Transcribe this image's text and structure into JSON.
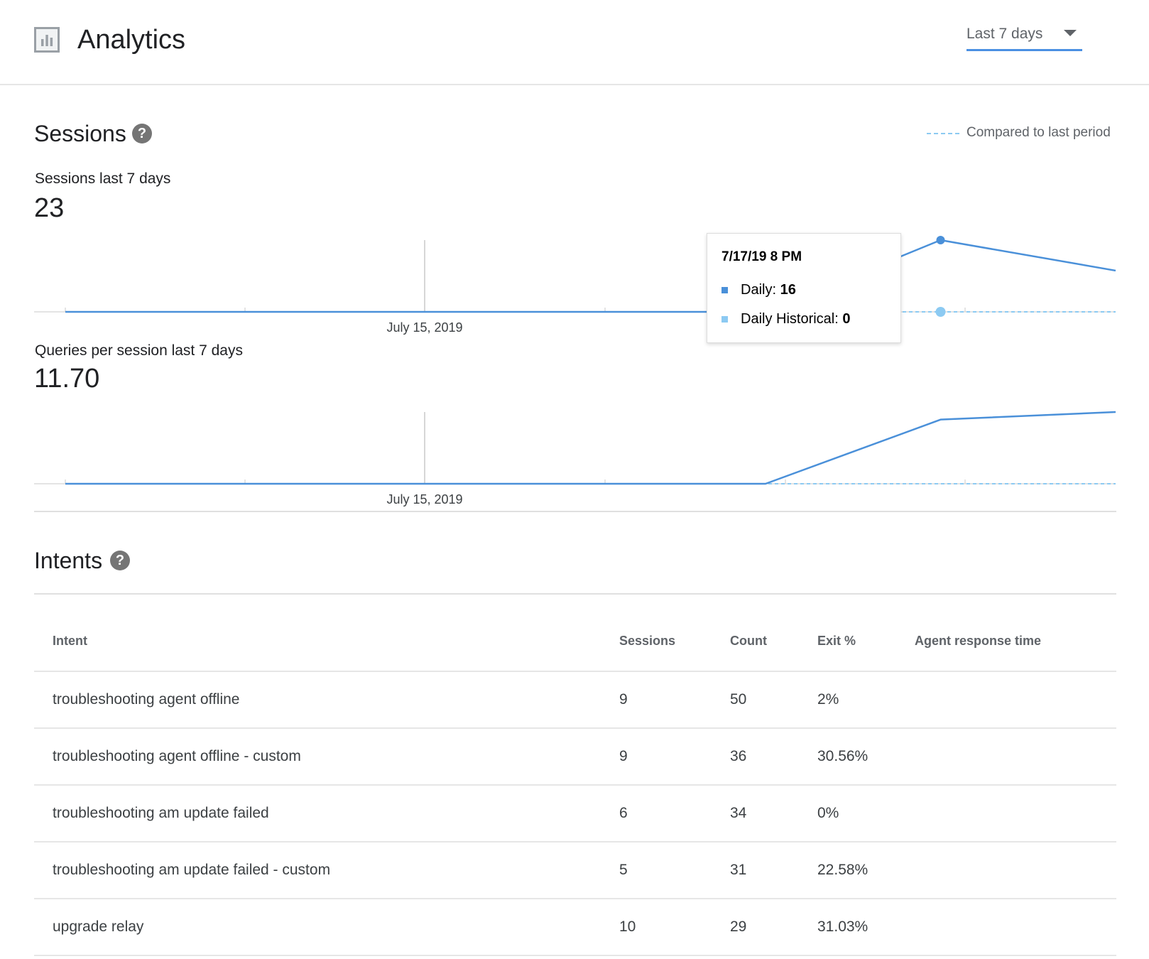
{
  "header": {
    "title": "Analytics",
    "icon": "bar-chart-icon",
    "range_select": {
      "selected": "Last 7 days"
    }
  },
  "sessions": {
    "title": "Sessions",
    "help_icon": "help-icon",
    "legend": {
      "label": "Compared to last period"
    },
    "sessions_metric": {
      "label": "Sessions last 7 days",
      "value": "23"
    },
    "queries_metric": {
      "label": "Queries per session last 7 days",
      "value": "11.70"
    },
    "tooltip": {
      "title": "7/17/19 8 PM",
      "rows": [
        {
          "label": "Daily:",
          "value": "16",
          "color": "#4a90d9"
        },
        {
          "label": "Daily Historical:",
          "value": "0",
          "color": "#8ccaf2"
        }
      ]
    }
  },
  "chart_data": [
    {
      "type": "line",
      "title": "Sessions last 7 days",
      "x_tick_labels": [
        "July 15, 2019"
      ],
      "series": [
        {
          "name": "Daily",
          "values": [
            0,
            0,
            0,
            0,
            0,
            16,
            9.2
          ],
          "color": "#4a90d9"
        },
        {
          "name": "Daily Historical",
          "values": [
            0,
            0,
            0,
            0,
            0,
            0,
            0
          ],
          "color": "#8ccaf2",
          "dashed": true
        }
      ],
      "ylim": [
        0,
        16
      ],
      "grid": false
    },
    {
      "type": "line",
      "title": "Queries per session last 7 days",
      "x_tick_labels": [
        "July 15, 2019"
      ],
      "series": [
        {
          "values": [
            0,
            0,
            0,
            0,
            0,
            11,
            12.3
          ],
          "color": "#4a90d9"
        },
        {
          "values": [
            0,
            0,
            0,
            0,
            0,
            0,
            0
          ],
          "color": "#8ccaf2",
          "dashed": true
        }
      ],
      "ylim": [
        0,
        12.3
      ],
      "grid": false
    }
  ],
  "intents": {
    "title": "Intents",
    "help_icon": "help-icon",
    "columns": [
      "Intent",
      "Sessions",
      "Count",
      "Exit %",
      "Agent response time"
    ],
    "rows": [
      [
        "troubleshooting agent offline",
        "9",
        "50",
        "2%",
        ""
      ],
      [
        "troubleshooting agent offline - custom",
        "9",
        "36",
        "30.56%",
        ""
      ],
      [
        "troubleshooting am update failed",
        "6",
        "34",
        "0%",
        ""
      ],
      [
        "troubleshooting am update failed - custom",
        "5",
        "31",
        "22.58%",
        ""
      ],
      [
        "upgrade relay",
        "10",
        "29",
        "31.03%",
        ""
      ]
    ]
  }
}
